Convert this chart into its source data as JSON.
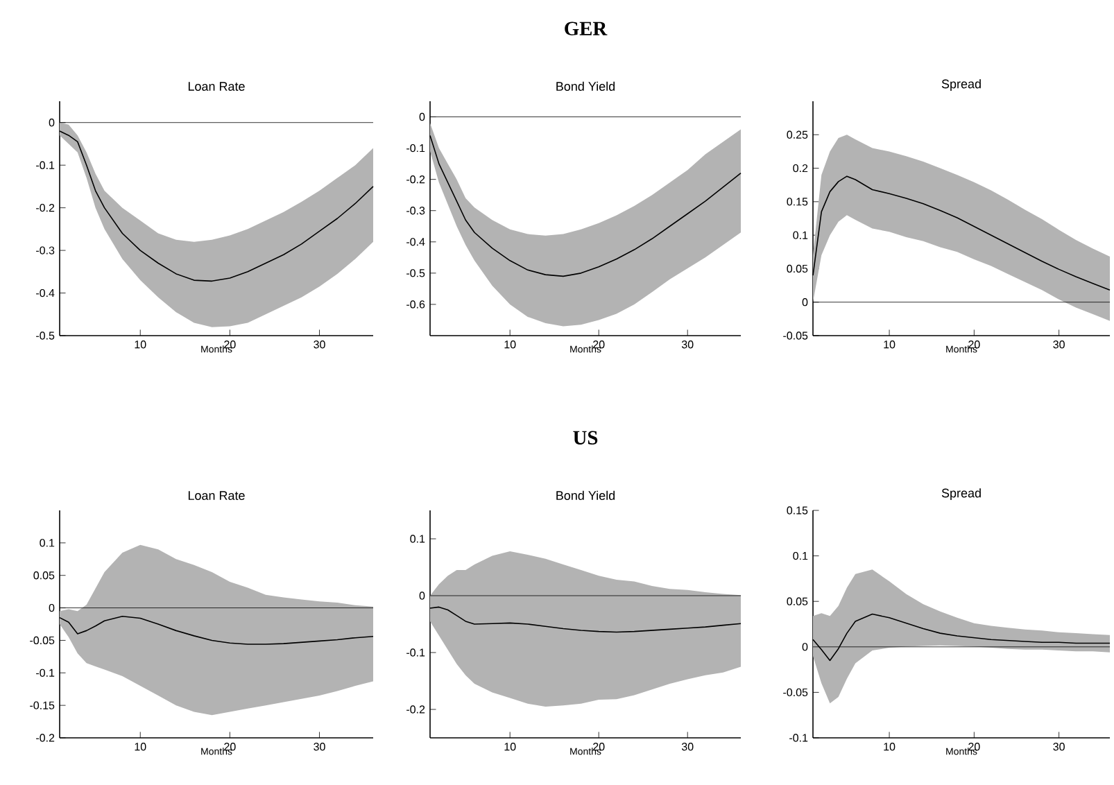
{
  "chart_data": [
    {
      "type": "line",
      "title": "Loan Rate",
      "xlabel": "Months",
      "x": [
        1,
        2,
        3,
        4,
        5,
        6,
        8,
        10,
        12,
        14,
        16,
        18,
        20,
        22,
        24,
        26,
        28,
        30,
        32,
        34,
        36
      ],
      "xlim": [
        1,
        36
      ],
      "xticks": [
        10,
        20,
        30
      ],
      "ylim": [
        -0.5,
        0.05
      ],
      "yticks": [
        -0.5,
        -0.4,
        -0.3,
        -0.2,
        -0.1,
        0
      ],
      "series": [
        {
          "color": "#000000",
          "values": [
            -0.02,
            -0.03,
            -0.045,
            -0.1,
            -0.16,
            -0.2,
            -0.26,
            -0.3,
            -0.33,
            -0.355,
            -0.37,
            -0.372,
            -0.365,
            -0.35,
            -0.33,
            -0.31,
            -0.285,
            -0.255,
            -0.225,
            -0.19,
            -0.15
          ],
          "upper": [
            0.0,
            -0.005,
            -0.03,
            -0.07,
            -0.12,
            -0.16,
            -0.2,
            -0.23,
            -0.26,
            -0.275,
            -0.28,
            -0.275,
            -0.265,
            -0.25,
            -0.23,
            -0.21,
            -0.186,
            -0.16,
            -0.13,
            -0.1,
            -0.06
          ],
          "lower": [
            -0.03,
            -0.05,
            -0.07,
            -0.13,
            -0.2,
            -0.25,
            -0.32,
            -0.37,
            -0.41,
            -0.445,
            -0.47,
            -0.48,
            -0.478,
            -0.47,
            -0.45,
            -0.43,
            -0.41,
            -0.385,
            -0.355,
            -0.32,
            -0.28
          ]
        }
      ],
      "ref_lines": [
        {
          "axis": "y",
          "value": 0,
          "color": "#000000"
        }
      ]
    },
    {
      "type": "line",
      "title": "Bond Yield",
      "xlabel": "Months",
      "annotations": [
        "GER"
      ],
      "x": [
        1,
        2,
        3,
        4,
        5,
        6,
        8,
        10,
        12,
        14,
        16,
        18,
        20,
        22,
        24,
        26,
        28,
        30,
        32,
        34,
        36
      ],
      "xlim": [
        1,
        36
      ],
      "xticks": [
        10,
        20,
        30
      ],
      "ylim": [
        -0.7,
        0.05
      ],
      "yticks": [
        -0.6,
        -0.5,
        -0.4,
        -0.3,
        -0.2,
        -0.1,
        0
      ],
      "series": [
        {
          "color": "#000000",
          "values": [
            -0.06,
            -0.15,
            -0.21,
            -0.27,
            -0.33,
            -0.37,
            -0.42,
            -0.46,
            -0.49,
            -0.505,
            -0.51,
            -0.5,
            -0.48,
            -0.455,
            -0.425,
            -0.39,
            -0.35,
            -0.31,
            -0.27,
            -0.225,
            -0.18
          ],
          "upper": [
            -0.02,
            -0.1,
            -0.15,
            -0.2,
            -0.26,
            -0.29,
            -0.33,
            -0.36,
            -0.375,
            -0.38,
            -0.375,
            -0.36,
            -0.34,
            -0.315,
            -0.285,
            -0.25,
            -0.21,
            -0.17,
            -0.12,
            -0.08,
            -0.04
          ],
          "lower": [
            -0.11,
            -0.21,
            -0.28,
            -0.35,
            -0.41,
            -0.46,
            -0.54,
            -0.6,
            -0.64,
            -0.66,
            -0.67,
            -0.665,
            -0.65,
            -0.63,
            -0.6,
            -0.561,
            -0.52,
            -0.485,
            -0.45,
            -0.41,
            -0.37
          ]
        }
      ],
      "ref_lines": [
        {
          "axis": "y",
          "value": 0,
          "color": "#000000"
        }
      ]
    },
    {
      "type": "line",
      "title": "Spread",
      "xlabel": "Months",
      "x": [
        1,
        2,
        3,
        4,
        5,
        6,
        8,
        10,
        12,
        14,
        16,
        18,
        20,
        22,
        24,
        26,
        28,
        30,
        32,
        34,
        36
      ],
      "xlim": [
        1,
        36
      ],
      "xticks": [
        10,
        20,
        30
      ],
      "ylim": [
        -0.05,
        0.3
      ],
      "yticks": [
        -0.05,
        0,
        0.05,
        0.1,
        0.15,
        0.2,
        0.25
      ],
      "series": [
        {
          "color": "#000000",
          "values": [
            0.04,
            0.135,
            0.165,
            0.18,
            0.188,
            0.183,
            0.168,
            0.162,
            0.155,
            0.147,
            0.137,
            0.126,
            0.113,
            0.1,
            0.087,
            0.074,
            0.061,
            0.049,
            0.038,
            0.028,
            0.018
          ],
          "upper": [
            0.07,
            0.19,
            0.225,
            0.245,
            0.25,
            0.243,
            0.23,
            0.225,
            0.218,
            0.21,
            0.2,
            0.19,
            0.179,
            0.167,
            0.153,
            0.138,
            0.124,
            0.108,
            0.093,
            0.08,
            0.068
          ],
          "lower": [
            0.0,
            0.07,
            0.1,
            0.12,
            0.13,
            0.123,
            0.11,
            0.105,
            0.097,
            0.091,
            0.082,
            0.075,
            0.064,
            0.054,
            0.042,
            0.03,
            0.018,
            0.004,
            -0.008,
            -0.018,
            -0.028
          ]
        }
      ],
      "ref_lines": [
        {
          "axis": "y",
          "value": 0,
          "color": "#000000"
        }
      ]
    },
    {
      "type": "line",
      "title": "Loan Rate",
      "xlabel": "Months",
      "x": [
        1,
        2,
        3,
        4,
        5,
        6,
        8,
        10,
        12,
        14,
        16,
        18,
        20,
        22,
        24,
        26,
        28,
        30,
        32,
        34,
        36
      ],
      "xlim": [
        1,
        36
      ],
      "xticks": [
        10,
        20,
        30
      ],
      "ylim": [
        -0.2,
        0.15
      ],
      "yticks": [
        -0.2,
        -0.15,
        -0.1,
        -0.05,
        0,
        0.05,
        0.1
      ],
      "series": [
        {
          "color": "#000000",
          "values": [
            -0.015,
            -0.022,
            -0.04,
            -0.035,
            -0.028,
            -0.02,
            -0.013,
            -0.016,
            -0.025,
            -0.035,
            -0.043,
            -0.05,
            -0.054,
            -0.056,
            -0.056,
            -0.055,
            -0.053,
            -0.051,
            -0.049,
            -0.046,
            -0.044
          ],
          "upper": [
            -0.005,
            -0.002,
            -0.005,
            0.005,
            0.03,
            0.055,
            0.085,
            0.097,
            0.09,
            0.075,
            0.066,
            0.055,
            0.04,
            0.031,
            0.02,
            0.016,
            0.013,
            0.01,
            0.008,
            0.004,
            0.002
          ],
          "lower": [
            -0.025,
            -0.045,
            -0.07,
            -0.085,
            -0.09,
            -0.095,
            -0.105,
            -0.12,
            -0.135,
            -0.15,
            -0.16,
            -0.165,
            -0.16,
            -0.155,
            -0.15,
            -0.145,
            -0.14,
            -0.135,
            -0.128,
            -0.12,
            -0.113
          ]
        }
      ],
      "ref_lines": [
        {
          "axis": "y",
          "value": 0,
          "color": "#000000"
        }
      ]
    },
    {
      "type": "line",
      "title": "Bond Yield",
      "xlabel": "Months",
      "annotations": [
        "US"
      ],
      "x": [
        1,
        2,
        3,
        4,
        5,
        6,
        8,
        10,
        12,
        14,
        16,
        18,
        20,
        22,
        24,
        26,
        28,
        30,
        32,
        34,
        36
      ],
      "xlim": [
        1,
        36
      ],
      "xticks": [
        10,
        20,
        30
      ],
      "ylim": [
        -0.25,
        0.15
      ],
      "yticks": [
        -0.2,
        -0.1,
        0,
        0.1
      ],
      "series": [
        {
          "color": "#000000",
          "values": [
            -0.022,
            -0.02,
            -0.025,
            -0.035,
            -0.045,
            -0.05,
            -0.049,
            -0.048,
            -0.05,
            -0.054,
            -0.058,
            -0.061,
            -0.063,
            -0.064,
            -0.063,
            -0.061,
            -0.059,
            -0.057,
            -0.055,
            -0.052,
            -0.049
          ],
          "upper": [
            0.0,
            0.02,
            0.035,
            0.045,
            0.045,
            0.055,
            0.07,
            0.078,
            0.072,
            0.065,
            0.055,
            0.045,
            0.035,
            0.028,
            0.025,
            0.017,
            0.012,
            0.01,
            0.006,
            0.003,
            0.001
          ],
          "lower": [
            -0.045,
            -0.07,
            -0.095,
            -0.12,
            -0.14,
            -0.155,
            -0.17,
            -0.18,
            -0.19,
            -0.195,
            -0.193,
            -0.19,
            -0.183,
            -0.182,
            -0.175,
            -0.165,
            -0.155,
            -0.147,
            -0.14,
            -0.135,
            -0.125
          ]
        }
      ],
      "ref_lines": [
        {
          "axis": "y",
          "value": 0,
          "color": "#000000"
        }
      ]
    },
    {
      "type": "line",
      "title": "Spread",
      "xlabel": "Months",
      "x": [
        1,
        2,
        3,
        4,
        5,
        6,
        8,
        10,
        12,
        14,
        16,
        18,
        20,
        22,
        24,
        26,
        28,
        30,
        32,
        34,
        36
      ],
      "xlim": [
        1,
        36
      ],
      "xticks": [
        10,
        20,
        30
      ],
      "ylim": [
        -0.1,
        0.15
      ],
      "yticks": [
        -0.1,
        -0.05,
        0,
        0.05,
        0.1,
        0.15
      ],
      "series": [
        {
          "color": "#000000",
          "values": [
            0.008,
            -0.003,
            -0.015,
            -0.002,
            0.015,
            0.028,
            0.036,
            0.032,
            0.026,
            0.02,
            0.015,
            0.012,
            0.01,
            0.008,
            0.007,
            0.006,
            0.005,
            0.005,
            0.004,
            0.004,
            0.004
          ],
          "upper": [
            0.034,
            0.037,
            0.034,
            0.045,
            0.065,
            0.08,
            0.085,
            0.072,
            0.058,
            0.047,
            0.039,
            0.032,
            0.026,
            0.023,
            0.021,
            0.019,
            0.018,
            0.016,
            0.015,
            0.014,
            0.013
          ],
          "lower": [
            -0.01,
            -0.04,
            -0.062,
            -0.055,
            -0.035,
            -0.018,
            -0.004,
            -0.001,
            0.0003,
            0.001,
            0.0015,
            0.001,
            0.0003,
            -0.001,
            -0.0022,
            -0.003,
            -0.003,
            -0.004,
            -0.005,
            -0.005,
            -0.006
          ]
        }
      ],
      "ref_lines": [
        {
          "axis": "y",
          "value": 0,
          "color": "#000000"
        }
      ]
    }
  ]
}
